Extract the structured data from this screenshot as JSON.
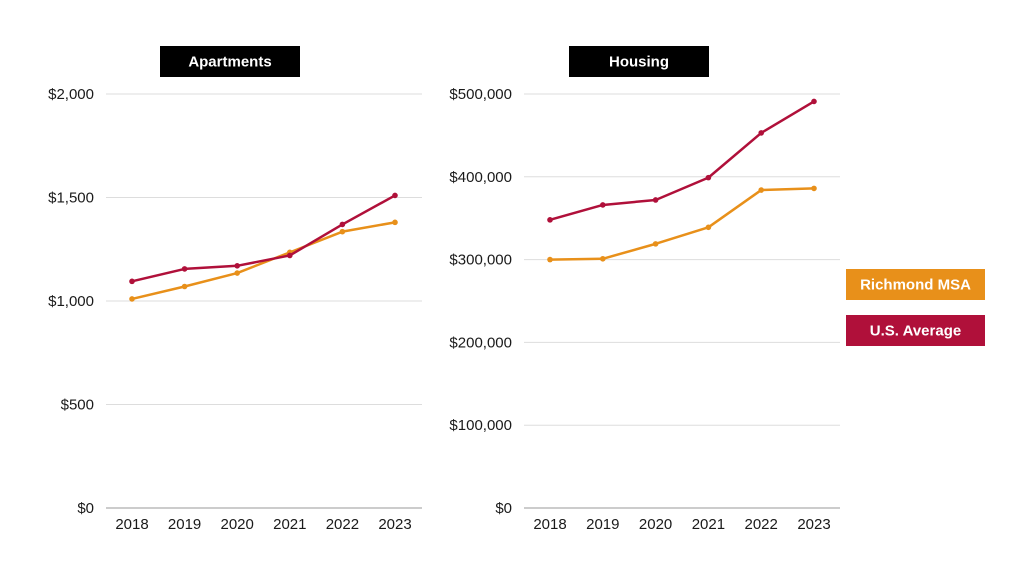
{
  "colors": {
    "richmond": "#E8901A",
    "us": "#B0103A",
    "title_bg": "#000000",
    "grid": "#dddddd",
    "axis": "#999999"
  },
  "legend": [
    {
      "label": "Richmond MSA",
      "color": "#E8901A"
    },
    {
      "label": "U.S. Average",
      "color": "#B0103A"
    }
  ],
  "chart_data": [
    {
      "type": "line",
      "title": "Apartments",
      "x": [
        "2018",
        "2019",
        "2020",
        "2021",
        "2022",
        "2023"
      ],
      "ylim": [
        0,
        2000
      ],
      "yticks": [
        0,
        500,
        1000,
        1500,
        2000
      ],
      "ytick_labels": [
        "$0",
        "$500",
        "$1,000",
        "$1,500",
        "$2,000"
      ],
      "grid": true,
      "series": [
        {
          "name": "Richmond MSA",
          "values": [
            1010,
            1070,
            1135,
            1235,
            1335,
            1380
          ]
        },
        {
          "name": "U.S. Average",
          "values": [
            1095,
            1155,
            1170,
            1220,
            1370,
            1510
          ]
        }
      ]
    },
    {
      "type": "line",
      "title": "Housing",
      "x": [
        "2018",
        "2019",
        "2020",
        "2021",
        "2022",
        "2023"
      ],
      "ylim": [
        0,
        500000
      ],
      "yticks": [
        0,
        100000,
        200000,
        300000,
        400000,
        500000
      ],
      "ytick_labels": [
        "$0",
        "$100,000",
        "$200,000",
        "$300,000",
        "$400,000",
        "$500,000"
      ],
      "grid": true,
      "series": [
        {
          "name": "Richmond MSA",
          "values": [
            300000,
            301000,
            319000,
            339000,
            384000,
            386000
          ]
        },
        {
          "name": "U.S. Average",
          "values": [
            348000,
            366000,
            372000,
            399000,
            453000,
            491000
          ]
        }
      ]
    }
  ]
}
